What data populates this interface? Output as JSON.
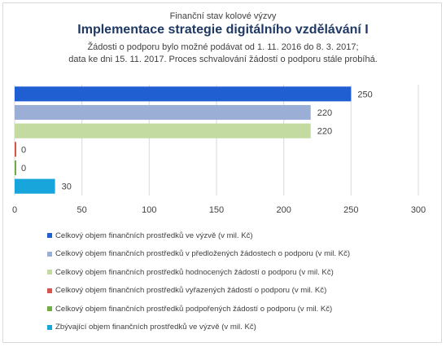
{
  "header": {
    "supertitle": "Finanční stav kolové výzvy",
    "title": "Implementace strategie digitálního vzdělávání I",
    "subtitle_line1": "Žádosti o podporu bylo možné  podávat od 1. 11. 2016 do 8. 3. 2017;",
    "subtitle_line2": "data ke dni 15. 11. 2017. Proces schvalování žádostí o podporu stále probíhá."
  },
  "chart_data": {
    "type": "bar",
    "orientation": "horizontal",
    "xlim": [
      0,
      300
    ],
    "ticks": [
      "0",
      "50",
      "100",
      "150",
      "200",
      "250",
      "300"
    ],
    "grid": true,
    "legend_position": "bottom",
    "series": [
      {
        "name": "Celkový objem finančních prostředků ve výzvě (v mil. Kč)",
        "value": 250,
        "label": "250",
        "color": "#1f5fd1"
      },
      {
        "name": "Celkový objem finančních prostředků v předložených žádostech o podporu (v mil. Kč)",
        "value": 220,
        "label": "220",
        "color": "#9aaed6"
      },
      {
        "name": "Celkový objem finančních prostředků hodnocených žádostí o podporu (v mil. Kč)",
        "value": 220,
        "label": "220",
        "color": "#c3dba0"
      },
      {
        "name": "Celkový objem finančních prostředků vyřazených žádostí o podporu (v mil. Kč)",
        "value": 0,
        "label": "0",
        "color": "#d9534f"
      },
      {
        "name": "Celkový objem finančních prostředků podpořených žádostí o podporu (v mil. Kč)",
        "value": 0,
        "label": "0",
        "color": "#70ad47"
      },
      {
        "name": "Zbývající objem finančních prostředků ve výzvě (v mil. Kč)",
        "value": 30,
        "label": "30",
        "color": "#17a5dc"
      }
    ]
  }
}
